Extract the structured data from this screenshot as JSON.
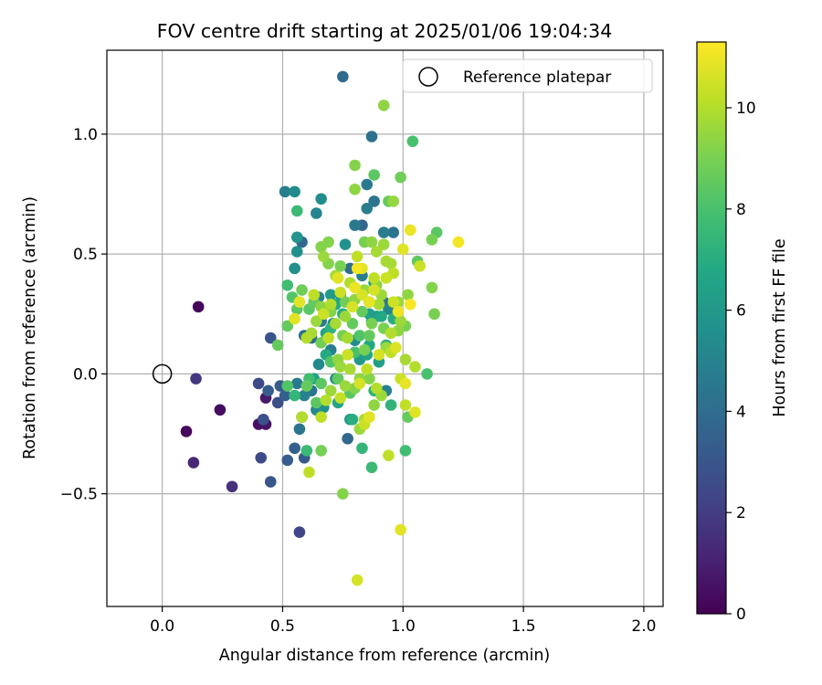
{
  "chart_data": {
    "type": "scatter",
    "title": "FOV centre drift starting at 2025/01/06 19:04:34",
    "xlabel": "Angular distance from reference (arcmin)",
    "ylabel": "Rotation from reference (arcmin)",
    "xlim": [
      -0.23,
      2.08
    ],
    "ylim": [
      -0.97,
      1.35
    ],
    "xticks": [
      0.0,
      0.5,
      1.0,
      1.5,
      2.0
    ],
    "xtick_labels": [
      "0.0",
      "0.5",
      "1.0",
      "1.5",
      "2.0"
    ],
    "yticks": [
      -0.5,
      0.0,
      0.5,
      1.0
    ],
    "ytick_labels": [
      "−0.5",
      "0.0",
      "0.5",
      "1.0"
    ],
    "grid": true,
    "legend": {
      "position": "top-right",
      "label": "Reference platepar"
    },
    "reference_point": {
      "x": 0.0,
      "y": 0.0
    },
    "colorbar": {
      "label": "Hours from first FF file",
      "colormap": "viridis",
      "range": [
        0,
        11.3
      ],
      "ticks": [
        0,
        2,
        4,
        6,
        8,
        10
      ],
      "tick_labels": [
        "0",
        "2",
        "4",
        "6",
        "8",
        "10"
      ]
    },
    "points": [
      {
        "x": 0.15,
        "y": 0.28,
        "c": 0.2
      },
      {
        "x": 0.1,
        "y": -0.24,
        "c": 0.2
      },
      {
        "x": 0.24,
        "y": -0.15,
        "c": 0.4
      },
      {
        "x": 0.13,
        "y": -0.37,
        "c": 1.2
      },
      {
        "x": 0.14,
        "y": -0.02,
        "c": 1.8
      },
      {
        "x": 0.29,
        "y": -0.47,
        "c": 1.6
      },
      {
        "x": 0.4,
        "y": -0.21,
        "c": 0.5
      },
      {
        "x": 0.43,
        "y": -0.21,
        "c": 0.6
      },
      {
        "x": 0.43,
        "y": -0.1,
        "c": 0.8
      },
      {
        "x": 0.4,
        "y": -0.04,
        "c": 2.5
      },
      {
        "x": 0.42,
        "y": -0.19,
        "c": 2.8
      },
      {
        "x": 0.41,
        "y": -0.35,
        "c": 2.6
      },
      {
        "x": 0.45,
        "y": -0.45,
        "c": 3.0
      },
      {
        "x": 0.45,
        "y": 0.15,
        "c": 2.9
      },
      {
        "x": 0.48,
        "y": -0.12,
        "c": 2.7
      },
      {
        "x": 0.44,
        "y": -0.07,
        "c": 3.3
      },
      {
        "x": 0.49,
        "y": -0.05,
        "c": 3.2
      },
      {
        "x": 0.51,
        "y": -0.09,
        "c": 3.4
      },
      {
        "x": 0.52,
        "y": -0.36,
        "c": 3.3
      },
      {
        "x": 0.55,
        "y": -0.31,
        "c": 3.4
      },
      {
        "x": 0.57,
        "y": -0.66,
        "c": 2.4
      },
      {
        "x": 0.59,
        "y": -0.35,
        "c": 3.2
      },
      {
        "x": 0.58,
        "y": -0.18,
        "c": 3.6
      },
      {
        "x": 0.75,
        "y": 1.24,
        "c": 3.9
      },
      {
        "x": 0.87,
        "y": 0.99,
        "c": 4.2
      },
      {
        "x": 0.51,
        "y": 0.76,
        "c": 4.8
      },
      {
        "x": 0.55,
        "y": 0.76,
        "c": 5.4
      },
      {
        "x": 0.66,
        "y": 0.73,
        "c": 5.5
      },
      {
        "x": 0.64,
        "y": 0.67,
        "c": 5.1
      },
      {
        "x": 0.56,
        "y": 0.57,
        "c": 5.8
      },
      {
        "x": 0.56,
        "y": 0.51,
        "c": 5.6
      },
      {
        "x": 0.58,
        "y": 0.55,
        "c": 3.8
      },
      {
        "x": 0.55,
        "y": 0.44,
        "c": 5.6
      },
      {
        "x": 0.85,
        "y": 0.79,
        "c": 4.6
      },
      {
        "x": 0.85,
        "y": 0.69,
        "c": 4.8
      },
      {
        "x": 0.88,
        "y": 0.72,
        "c": 4.4
      },
      {
        "x": 0.92,
        "y": 0.59,
        "c": 4.7
      },
      {
        "x": 0.96,
        "y": 0.59,
        "c": 4.3
      },
      {
        "x": 0.8,
        "y": 0.62,
        "c": 4.5
      },
      {
        "x": 0.83,
        "y": 0.62,
        "c": 3.7
      },
      {
        "x": 0.76,
        "y": 0.54,
        "c": 5.7
      },
      {
        "x": 0.66,
        "y": 0.22,
        "c": 4.6
      },
      {
        "x": 0.62,
        "y": 0.15,
        "c": 4.0
      },
      {
        "x": 0.7,
        "y": 0.1,
        "c": 4.8
      },
      {
        "x": 0.65,
        "y": 0.04,
        "c": 5.3
      },
      {
        "x": 0.59,
        "y": 0.16,
        "c": 4.2
      },
      {
        "x": 0.56,
        "y": -0.04,
        "c": 4.6
      },
      {
        "x": 0.62,
        "y": -0.07,
        "c": 4.4
      },
      {
        "x": 0.59,
        "y": -0.09,
        "c": 5.0
      },
      {
        "x": 0.64,
        "y": -0.15,
        "c": 5.2
      },
      {
        "x": 0.57,
        "y": -0.23,
        "c": 4.4
      },
      {
        "x": 0.67,
        "y": -0.14,
        "c": 5.6
      },
      {
        "x": 0.77,
        "y": -0.27,
        "c": 3.8
      },
      {
        "x": 0.78,
        "y": -0.19,
        "c": 6.0
      },
      {
        "x": 0.72,
        "y": -0.02,
        "c": 5.8
      },
      {
        "x": 0.8,
        "y": 0.14,
        "c": 5.4
      },
      {
        "x": 0.86,
        "y": 0.3,
        "c": 5.0
      },
      {
        "x": 0.92,
        "y": 0.3,
        "c": 4.4
      },
      {
        "x": 0.87,
        "y": 0.22,
        "c": 5.9
      },
      {
        "x": 0.94,
        "y": 0.27,
        "c": 5.2
      },
      {
        "x": 0.74,
        "y": 0.33,
        "c": 5.9
      },
      {
        "x": 0.7,
        "y": 0.33,
        "c": 6.1
      },
      {
        "x": 0.68,
        "y": 0.17,
        "c": 6.4
      },
      {
        "x": 0.82,
        "y": 0.06,
        "c": 6.0
      },
      {
        "x": 0.9,
        "y": 0.05,
        "c": 6.3
      },
      {
        "x": 0.71,
        "y": 0.21,
        "c": 5.4
      },
      {
        "x": 0.65,
        "y": 0.32,
        "c": 5.0
      },
      {
        "x": 0.78,
        "y": 0.44,
        "c": 4.0
      },
      {
        "x": 0.83,
        "y": 0.41,
        "c": 4.8
      },
      {
        "x": 0.86,
        "y": 0.12,
        "c": 6.8
      },
      {
        "x": 0.63,
        "y": -0.02,
        "c": 6.5
      },
      {
        "x": 0.73,
        "y": -0.12,
        "c": 6.6
      },
      {
        "x": 0.68,
        "y": 0.08,
        "c": 6.9
      },
      {
        "x": 0.93,
        "y": -0.07,
        "c": 4.9
      },
      {
        "x": 0.89,
        "y": 0.24,
        "c": 6.2
      },
      {
        "x": 0.52,
        "y": 0.37,
        "c": 7.8
      },
      {
        "x": 0.56,
        "y": 0.68,
        "c": 7.6
      },
      {
        "x": 0.54,
        "y": 0.32,
        "c": 8.2
      },
      {
        "x": 0.52,
        "y": 0.2,
        "c": 8.6
      },
      {
        "x": 0.56,
        "y": 0.27,
        "c": 8.4
      },
      {
        "x": 0.58,
        "y": 0.35,
        "c": 8.8
      },
      {
        "x": 0.48,
        "y": 0.12,
        "c": 8.6
      },
      {
        "x": 0.52,
        "y": -0.05,
        "c": 8.2
      },
      {
        "x": 0.55,
        "y": -0.09,
        "c": 7.4
      },
      {
        "x": 0.6,
        "y": -0.32,
        "c": 7.6
      },
      {
        "x": 0.61,
        "y": -0.02,
        "c": 7.8
      },
      {
        "x": 0.66,
        "y": -0.04,
        "c": 8.4
      },
      {
        "x": 0.66,
        "y": -0.32,
        "c": 8.9
      },
      {
        "x": 0.75,
        "y": -0.5,
        "c": 9.2
      },
      {
        "x": 0.87,
        "y": -0.39,
        "c": 7.6
      },
      {
        "x": 0.83,
        "y": -0.31,
        "c": 7.4
      },
      {
        "x": 0.79,
        "y": -0.19,
        "c": 7.0
      },
      {
        "x": 0.88,
        "y": -0.07,
        "c": 7.2
      },
      {
        "x": 0.95,
        "y": -0.13,
        "c": 7.3
      },
      {
        "x": 1.01,
        "y": -0.32,
        "c": 7.8
      },
      {
        "x": 1.02,
        "y": -0.18,
        "c": 8.6
      },
      {
        "x": 1.1,
        "y": -0.0,
        "c": 8.0
      },
      {
        "x": 0.92,
        "y": 1.12,
        "c": 9.4
      },
      {
        "x": 1.04,
        "y": 0.97,
        "c": 8.0
      },
      {
        "x": 0.88,
        "y": 0.83,
        "c": 8.4
      },
      {
        "x": 0.99,
        "y": 0.82,
        "c": 8.8
      },
      {
        "x": 0.8,
        "y": 0.87,
        "c": 9.2
      },
      {
        "x": 0.8,
        "y": 0.77,
        "c": 9.4
      },
      {
        "x": 0.94,
        "y": 0.72,
        "c": 8.6
      },
      {
        "x": 0.96,
        "y": 0.72,
        "c": 9.5
      },
      {
        "x": 1.14,
        "y": 0.59,
        "c": 8.4
      },
      {
        "x": 1.12,
        "y": 0.56,
        "c": 9.0
      },
      {
        "x": 1.06,
        "y": 0.47,
        "c": 8.5
      },
      {
        "x": 1.12,
        "y": 0.36,
        "c": 9.2
      },
      {
        "x": 1.13,
        "y": 0.25,
        "c": 9.0
      },
      {
        "x": 1.07,
        "y": 0.45,
        "c": 10.4
      },
      {
        "x": 0.92,
        "y": 0.54,
        "c": 9.6
      },
      {
        "x": 0.93,
        "y": 0.47,
        "c": 9.8
      },
      {
        "x": 0.96,
        "y": 0.42,
        "c": 10.2
      },
      {
        "x": 1.02,
        "y": 0.33,
        "c": 9.4
      },
      {
        "x": 0.99,
        "y": 0.22,
        "c": 9.6
      },
      {
        "x": 1.01,
        "y": 0.2,
        "c": 9.0
      },
      {
        "x": 0.98,
        "y": 0.18,
        "c": 9.4
      },
      {
        "x": 1.01,
        "y": 0.06,
        "c": 9.8
      },
      {
        "x": 1.05,
        "y": 0.03,
        "c": 10.0
      },
      {
        "x": 0.99,
        "y": -0.02,
        "c": 10.4
      },
      {
        "x": 1.01,
        "y": -0.04,
        "c": 10.9
      },
      {
        "x": 1.01,
        "y": -0.13,
        "c": 10.2
      },
      {
        "x": 1.05,
        "y": -0.16,
        "c": 10.8
      },
      {
        "x": 0.94,
        "y": -0.34,
        "c": 10.2
      },
      {
        "x": 0.99,
        "y": -0.65,
        "c": 10.8
      },
      {
        "x": 0.81,
        "y": -0.86,
        "c": 10.6
      },
      {
        "x": 0.84,
        "y": -0.21,
        "c": 10.4
      },
      {
        "x": 0.86,
        "y": -0.18,
        "c": 10.8
      },
      {
        "x": 0.82,
        "y": -0.04,
        "c": 10.6
      },
      {
        "x": 0.85,
        "y": 0.02,
        "c": 10.2
      },
      {
        "x": 0.89,
        "y": -0.06,
        "c": 10.0
      },
      {
        "x": 0.9,
        "y": 0.08,
        "c": 10.6
      },
      {
        "x": 0.95,
        "y": 0.09,
        "c": 10.2
      },
      {
        "x": 0.97,
        "y": 0.11,
        "c": 10.7
      },
      {
        "x": 0.8,
        "y": 0.36,
        "c": 11.0
      },
      {
        "x": 0.83,
        "y": 0.33,
        "c": 10.6
      },
      {
        "x": 0.86,
        "y": 0.3,
        "c": 10.9
      },
      {
        "x": 0.83,
        "y": 0.44,
        "c": 10.8
      },
      {
        "x": 0.81,
        "y": 0.44,
        "c": 11.1
      },
      {
        "x": 0.88,
        "y": 0.4,
        "c": 10.2
      },
      {
        "x": 0.96,
        "y": 0.3,
        "c": 10.4
      },
      {
        "x": 0.98,
        "y": 0.26,
        "c": 11.0
      },
      {
        "x": 1.0,
        "y": 0.52,
        "c": 10.8
      },
      {
        "x": 1.03,
        "y": 0.6,
        "c": 11.0
      },
      {
        "x": 1.03,
        "y": 0.29,
        "c": 11.2
      },
      {
        "x": 1.23,
        "y": 0.55,
        "c": 11.1
      },
      {
        "x": 0.57,
        "y": 0.3,
        "c": 10.8
      },
      {
        "x": 0.55,
        "y": 0.23,
        "c": 10.8
      },
      {
        "x": 0.58,
        "y": -0.18,
        "c": 10.0
      },
      {
        "x": 0.61,
        "y": -0.41,
        "c": 10.2
      },
      {
        "x": 0.66,
        "y": -0.18,
        "c": 10.2
      },
      {
        "x": 0.6,
        "y": 0.15,
        "c": 10.0
      },
      {
        "x": 0.62,
        "y": 0.17,
        "c": 9.8
      },
      {
        "x": 0.64,
        "y": 0.22,
        "c": 9.6
      },
      {
        "x": 0.66,
        "y": 0.28,
        "c": 9.4
      },
      {
        "x": 0.7,
        "y": 0.26,
        "c": 9.2
      },
      {
        "x": 0.69,
        "y": 0.46,
        "c": 9.2
      },
      {
        "x": 0.72,
        "y": 0.41,
        "c": 9.8
      },
      {
        "x": 0.74,
        "y": 0.45,
        "c": 9.0
      },
      {
        "x": 0.76,
        "y": 0.3,
        "c": 8.8
      },
      {
        "x": 0.76,
        "y": 0.24,
        "c": 9.6
      },
      {
        "x": 0.75,
        "y": 0.16,
        "c": 9.0
      },
      {
        "x": 0.79,
        "y": 0.21,
        "c": 8.6
      },
      {
        "x": 0.73,
        "y": 0.06,
        "c": 9.4
      },
      {
        "x": 0.76,
        "y": -0.05,
        "c": 9.6
      },
      {
        "x": 0.8,
        "y": -0.06,
        "c": 9.2
      },
      {
        "x": 0.78,
        "y": 0.02,
        "c": 9.8
      },
      {
        "x": 0.7,
        "y": -0.07,
        "c": 9.6
      },
      {
        "x": 0.68,
        "y": -0.11,
        "c": 10.0
      },
      {
        "x": 0.74,
        "y": -0.1,
        "c": 10.3
      },
      {
        "x": 0.82,
        "y": -0.02,
        "c": 9.4
      },
      {
        "x": 0.84,
        "y": 0.1,
        "c": 9.0
      },
      {
        "x": 0.86,
        "y": 0.16,
        "c": 8.6
      },
      {
        "x": 0.87,
        "y": 0.21,
        "c": 9.0
      },
      {
        "x": 0.89,
        "y": 0.37,
        "c": 9.4
      },
      {
        "x": 0.91,
        "y": 0.33,
        "c": 9.6
      },
      {
        "x": 0.84,
        "y": 0.55,
        "c": 9.0
      },
      {
        "x": 0.87,
        "y": 0.55,
        "c": 9.4
      },
      {
        "x": 0.89,
        "y": 0.51,
        "c": 9.8
      },
      {
        "x": 0.66,
        "y": 0.53,
        "c": 9.2
      },
      {
        "x": 0.69,
        "y": 0.55,
        "c": 9.2
      },
      {
        "x": 0.67,
        "y": 0.49,
        "c": 9.6
      },
      {
        "x": 0.63,
        "y": 0.3,
        "c": 8.6
      },
      {
        "x": 0.61,
        "y": 0.27,
        "c": 8.4
      },
      {
        "x": 0.66,
        "y": 0.13,
        "c": 8.8
      },
      {
        "x": 0.64,
        "y": -0.12,
        "c": 8.4
      },
      {
        "x": 0.6,
        "y": -0.05,
        "c": 8.6
      },
      {
        "x": 0.7,
        "y": 0.05,
        "c": 8.2
      },
      {
        "x": 0.73,
        "y": -0.02,
        "c": 8.6
      },
      {
        "x": 0.78,
        "y": -0.08,
        "c": 8.4
      },
      {
        "x": 0.8,
        "y": 0.09,
        "c": 8.0
      },
      {
        "x": 0.82,
        "y": 0.16,
        "c": 8.2
      },
      {
        "x": 0.83,
        "y": 0.26,
        "c": 8.6
      },
      {
        "x": 0.84,
        "y": 0.35,
        "c": 9.6
      },
      {
        "x": 0.92,
        "y": 0.19,
        "c": 9.0
      },
      {
        "x": 0.93,
        "y": 0.11,
        "c": 9.6
      },
      {
        "x": 0.91,
        "y": -0.09,
        "c": 9.6
      },
      {
        "x": 0.88,
        "y": -0.13,
        "c": 9.4
      },
      {
        "x": 0.82,
        "y": -0.23,
        "c": 9.6
      },
      {
        "x": 0.84,
        "y": -0.19,
        "c": 9.8
      },
      {
        "x": 0.86,
        "y": -0.02,
        "c": 9.2
      },
      {
        "x": 0.77,
        "y": 0.08,
        "c": 10.4
      },
      {
        "x": 0.79,
        "y": 0.28,
        "c": 10.6
      },
      {
        "x": 0.74,
        "y": 0.34,
        "c": 10.4
      },
      {
        "x": 0.7,
        "y": 0.29,
        "c": 10.0
      },
      {
        "x": 0.72,
        "y": 0.21,
        "c": 9.8
      },
      {
        "x": 0.69,
        "y": 0.15,
        "c": 10.2
      },
      {
        "x": 0.67,
        "y": 0.25,
        "c": 10.4
      },
      {
        "x": 0.63,
        "y": 0.33,
        "c": 10.2
      },
      {
        "x": 0.73,
        "y": 0.4,
        "c": 10.8
      },
      {
        "x": 0.78,
        "y": 0.38,
        "c": 10.0
      },
      {
        "x": 0.81,
        "y": 0.49,
        "c": 10.2
      },
      {
        "x": 0.88,
        "y": 0.35,
        "c": 10.6
      },
      {
        "x": 0.93,
        "y": 0.4,
        "c": 10.4
      },
      {
        "x": 0.95,
        "y": 0.46,
        "c": 9.8
      },
      {
        "x": 0.9,
        "y": 0.29,
        "c": 9.8
      },
      {
        "x": 0.95,
        "y": 0.17,
        "c": 10.0
      },
      {
        "x": 0.98,
        "y": 0.3,
        "c": 9.6
      },
      {
        "x": 0.8,
        "y": 0.31,
        "c": 9.4
      },
      {
        "x": 0.77,
        "y": 0.15,
        "c": 9.8
      },
      {
        "x": 0.74,
        "y": 0.03,
        "c": 9.6
      },
      {
        "x": 0.91,
        "y": 0.24,
        "c": 6.8
      },
      {
        "x": 0.96,
        "y": 0.23,
        "c": 7.0
      },
      {
        "x": 0.93,
        "y": 0.12,
        "c": 7.2
      },
      {
        "x": 0.86,
        "y": 0.25,
        "c": 6.4
      },
      {
        "x": 0.85,
        "y": 0.08,
        "c": 6.6
      },
      {
        "x": 0.88,
        "y": 0.38,
        "c": 6.2
      },
      {
        "x": 0.75,
        "y": 0.25,
        "c": 7.0
      },
      {
        "x": 0.72,
        "y": 0.29,
        "c": 6.8
      },
      {
        "x": 0.7,
        "y": 0.19,
        "c": 7.2
      }
    ]
  }
}
